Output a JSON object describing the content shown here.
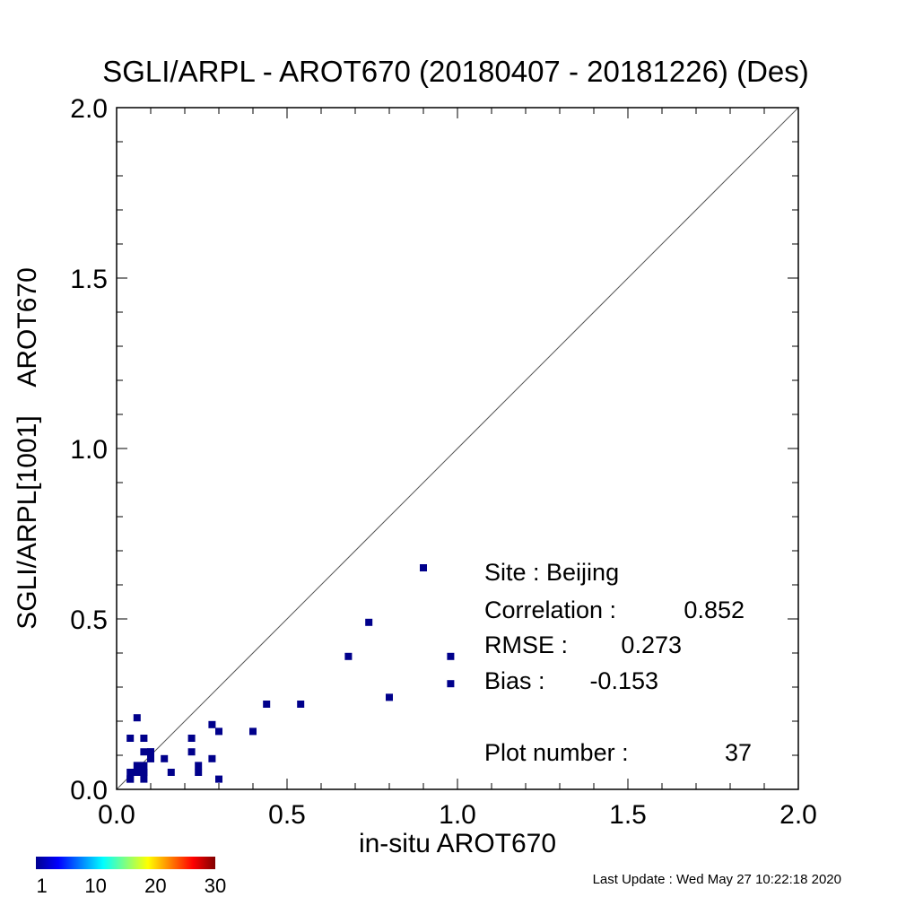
{
  "chart_data": {
    "type": "scatter",
    "title": "SGLI/ARPL - AROT670 (20180407 - 20181226) (Des)",
    "xlabel": "in-situ AROT670",
    "ylabel": "SGLI/ARPL[1001]    AROT670",
    "xlim": [
      0.0,
      2.0
    ],
    "ylim": [
      0.0,
      2.0
    ],
    "x_ticks": [
      "0.0",
      "0.5",
      "1.0",
      "1.5",
      "2.0"
    ],
    "y_ticks": [
      "0.0",
      "0.5",
      "1.0",
      "1.5",
      "2.0"
    ],
    "reference_line": "1:1",
    "grid": false,
    "marker_color": "#00008b",
    "points": [
      {
        "x": 0.9,
        "y": 0.65
      },
      {
        "x": 0.74,
        "y": 0.49
      },
      {
        "x": 0.68,
        "y": 0.39
      },
      {
        "x": 0.98,
        "y": 0.39
      },
      {
        "x": 0.98,
        "y": 0.31
      },
      {
        "x": 0.8,
        "y": 0.27
      },
      {
        "x": 0.54,
        "y": 0.25
      },
      {
        "x": 0.44,
        "y": 0.25
      },
      {
        "x": 0.4,
        "y": 0.17
      },
      {
        "x": 0.3,
        "y": 0.17
      },
      {
        "x": 0.28,
        "y": 0.19
      },
      {
        "x": 0.28,
        "y": 0.09
      },
      {
        "x": 0.3,
        "y": 0.03
      },
      {
        "x": 0.24,
        "y": 0.07
      },
      {
        "x": 0.24,
        "y": 0.05
      },
      {
        "x": 0.22,
        "y": 0.15
      },
      {
        "x": 0.22,
        "y": 0.11
      },
      {
        "x": 0.16,
        "y": 0.05
      },
      {
        "x": 0.14,
        "y": 0.09
      },
      {
        "x": 0.1,
        "y": 0.11
      },
      {
        "x": 0.1,
        "y": 0.09
      },
      {
        "x": 0.08,
        "y": 0.15
      },
      {
        "x": 0.08,
        "y": 0.11
      },
      {
        "x": 0.08,
        "y": 0.07
      },
      {
        "x": 0.08,
        "y": 0.05
      },
      {
        "x": 0.08,
        "y": 0.03
      },
      {
        "x": 0.06,
        "y": 0.21
      },
      {
        "x": 0.06,
        "y": 0.07
      },
      {
        "x": 0.06,
        "y": 0.05
      },
      {
        "x": 0.04,
        "y": 0.15
      },
      {
        "x": 0.04,
        "y": 0.05
      },
      {
        "x": 0.04,
        "y": 0.03
      },
      {
        "x": 0.1,
        "y": 0.11
      },
      {
        "x": 0.06,
        "y": 0.05
      },
      {
        "x": 0.08,
        "y": 0.05
      },
      {
        "x": 0.04,
        "y": 0.03
      },
      {
        "x": 0.1,
        "y": 0.09
      }
    ],
    "stats": {
      "site_label": "Site : Beijing",
      "correlation_label": "Correlation :",
      "correlation_value": "0.852",
      "rmse_label": "RMSE :",
      "rmse_value": "0.273",
      "bias_label": "Bias :",
      "bias_value": "-0.153",
      "plot_number_label": "Plot number :",
      "plot_number_value": "37"
    },
    "colorbar": {
      "colors": [
        "#00008f",
        "#0000ff",
        "#0080ff",
        "#00ffff",
        "#80ff80",
        "#ffff00",
        "#ff8000",
        "#ff0000",
        "#800000"
      ],
      "ticks": [
        "1",
        "10",
        "20",
        "30"
      ],
      "tick_values": [
        1,
        10,
        20,
        30
      ],
      "range": [
        0,
        30
      ]
    },
    "footer": "Last Update : Wed May 27 10:22:18 2020"
  }
}
